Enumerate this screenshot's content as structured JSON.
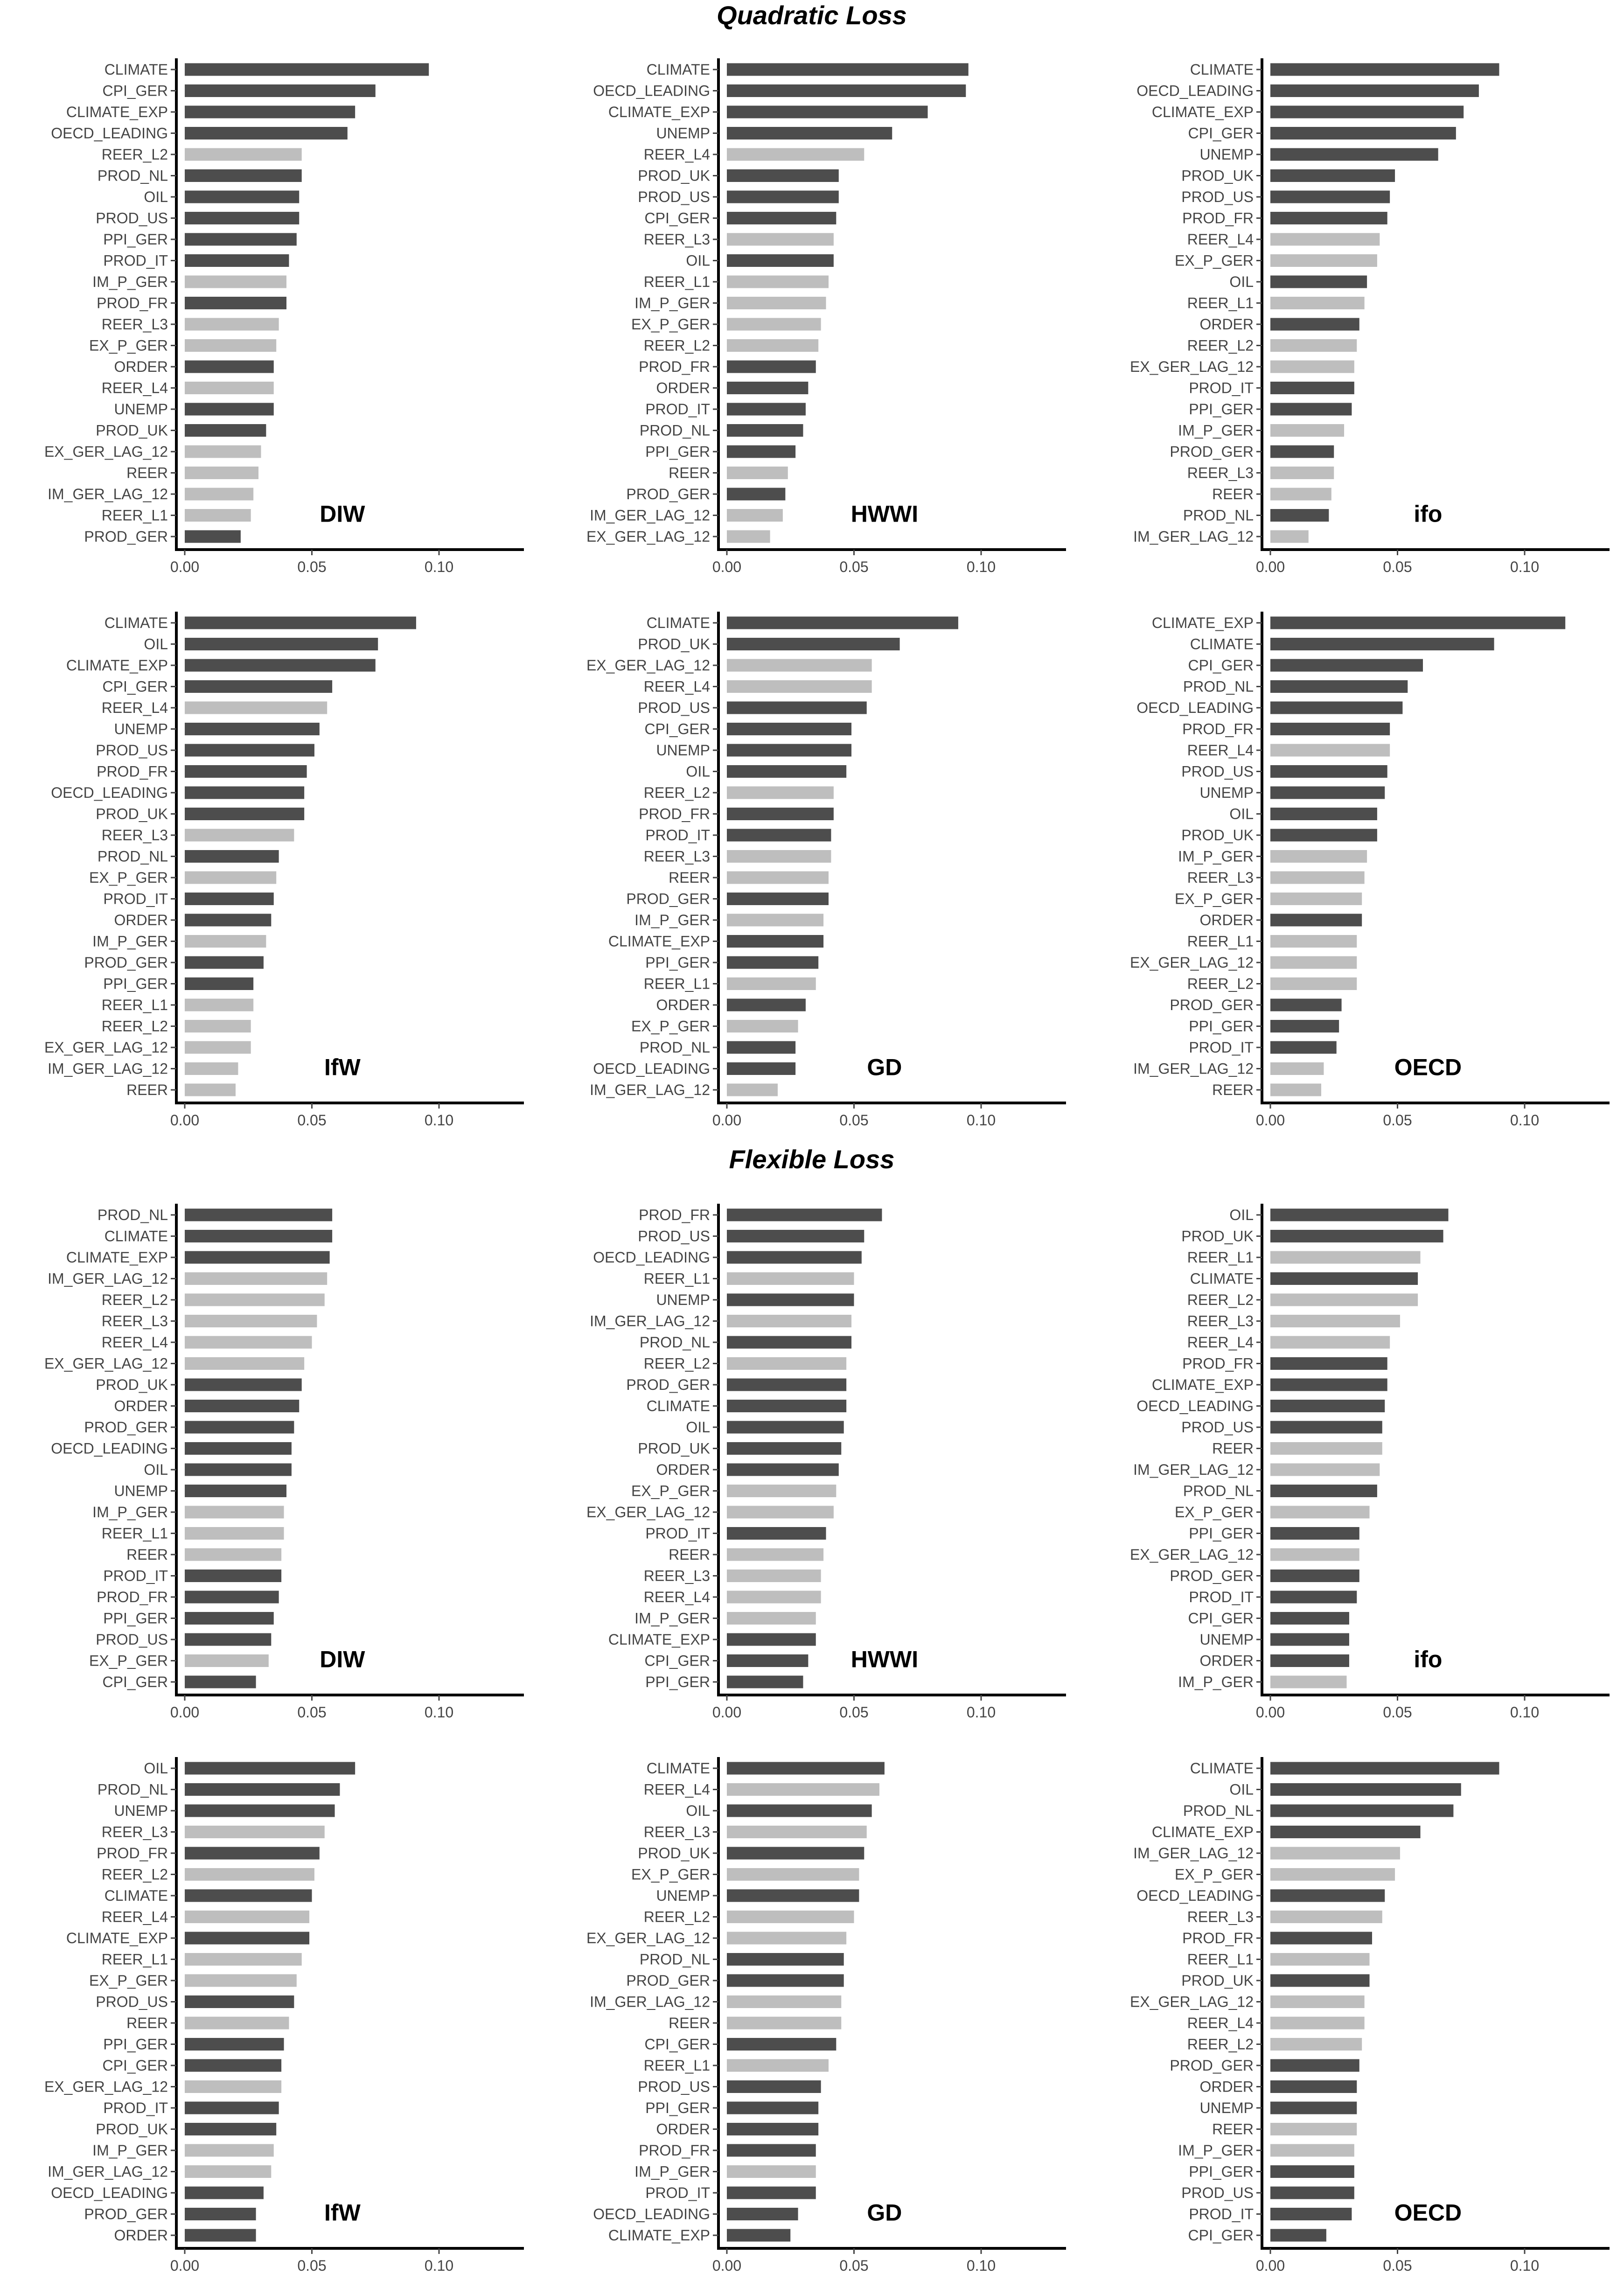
{
  "colors": {
    "dark": "#4d4d4d",
    "light": "#bebebe",
    "axis": "#000000",
    "text": "#444444"
  },
  "chart_data": [
    {
      "section_title": "Quadratic Loss",
      "type": "bar",
      "orientation": "horizontal",
      "xlim": [
        0,
        0.135
      ],
      "xticks": [
        "0.00",
        "0.05",
        "0.10"
      ],
      "panels": [
        {
          "label": "DIW",
          "categories": [
            "CLIMATE",
            "CPI_GER",
            "CLIMATE_EXP",
            "OECD_LEADING",
            "REER_L2",
            "PROD_NL",
            "OIL",
            "PROD_US",
            "PPI_GER",
            "PROD_IT",
            "IM_P_GER",
            "PROD_FR",
            "REER_L3",
            "EX_P_GER",
            "ORDER",
            "REER_L4",
            "UNEMP",
            "PROD_UK",
            "EX_GER_LAG_12",
            "REER",
            "IM_GER_LAG_12",
            "REER_L1",
            "PROD_GER"
          ],
          "values": [
            0.096,
            0.075,
            0.067,
            0.064,
            0.046,
            0.046,
            0.045,
            0.045,
            0.044,
            0.041,
            0.04,
            0.04,
            0.037,
            0.036,
            0.035,
            0.035,
            0.035,
            0.032,
            0.03,
            0.029,
            0.027,
            0.026,
            0.022
          ],
          "shade": [
            "dark",
            "dark",
            "dark",
            "dark",
            "light",
            "dark",
            "dark",
            "dark",
            "dark",
            "dark",
            "light",
            "dark",
            "light",
            "light",
            "dark",
            "light",
            "dark",
            "dark",
            "light",
            "light",
            "light",
            "light",
            "dark"
          ]
        },
        {
          "label": "HWWI",
          "categories": [
            "CLIMATE",
            "OECD_LEADING",
            "CLIMATE_EXP",
            "UNEMP",
            "REER_L4",
            "PROD_UK",
            "PROD_US",
            "CPI_GER",
            "REER_L3",
            "OIL",
            "REER_L1",
            "IM_P_GER",
            "EX_P_GER",
            "REER_L2",
            "PROD_FR",
            "ORDER",
            "PROD_IT",
            "PROD_NL",
            "PPI_GER",
            "REER",
            "PROD_GER",
            "IM_GER_LAG_12",
            "EX_GER_LAG_12"
          ],
          "values": [
            0.095,
            0.094,
            0.079,
            0.065,
            0.054,
            0.044,
            0.044,
            0.043,
            0.042,
            0.042,
            0.04,
            0.039,
            0.037,
            0.036,
            0.035,
            0.032,
            0.031,
            0.03,
            0.027,
            0.024,
            0.023,
            0.022,
            0.017
          ],
          "shade": [
            "dark",
            "dark",
            "dark",
            "dark",
            "light",
            "dark",
            "dark",
            "dark",
            "light",
            "dark",
            "light",
            "light",
            "light",
            "light",
            "dark",
            "dark",
            "dark",
            "dark",
            "dark",
            "light",
            "dark",
            "light",
            "light"
          ]
        },
        {
          "label": "ifo",
          "categories": [
            "CLIMATE",
            "OECD_LEADING",
            "CLIMATE_EXP",
            "CPI_GER",
            "UNEMP",
            "PROD_UK",
            "PROD_US",
            "PROD_FR",
            "REER_L4",
            "EX_P_GER",
            "OIL",
            "REER_L1",
            "ORDER",
            "REER_L2",
            "EX_GER_LAG_12",
            "PROD_IT",
            "PPI_GER",
            "IM_P_GER",
            "PROD_GER",
            "REER_L3",
            "REER",
            "PROD_NL",
            "IM_GER_LAG_12"
          ],
          "values": [
            0.09,
            0.082,
            0.076,
            0.073,
            0.066,
            0.049,
            0.047,
            0.046,
            0.043,
            0.042,
            0.038,
            0.037,
            0.035,
            0.034,
            0.033,
            0.033,
            0.032,
            0.029,
            0.025,
            0.025,
            0.024,
            0.023,
            0.015
          ],
          "shade": [
            "dark",
            "dark",
            "dark",
            "dark",
            "dark",
            "dark",
            "dark",
            "dark",
            "light",
            "light",
            "dark",
            "light",
            "dark",
            "light",
            "light",
            "dark",
            "dark",
            "light",
            "dark",
            "light",
            "light",
            "dark",
            "light"
          ]
        },
        {
          "label": "IfW",
          "categories": [
            "CLIMATE",
            "OIL",
            "CLIMATE_EXP",
            "CPI_GER",
            "REER_L4",
            "UNEMP",
            "PROD_US",
            "PROD_FR",
            "OECD_LEADING",
            "PROD_UK",
            "REER_L3",
            "PROD_NL",
            "EX_P_GER",
            "PROD_IT",
            "ORDER",
            "IM_P_GER",
            "PROD_GER",
            "PPI_GER",
            "REER_L1",
            "REER_L2",
            "EX_GER_LAG_12",
            "IM_GER_LAG_12",
            "REER"
          ],
          "values": [
            0.091,
            0.076,
            0.075,
            0.058,
            0.056,
            0.053,
            0.051,
            0.048,
            0.047,
            0.047,
            0.043,
            0.037,
            0.036,
            0.035,
            0.034,
            0.032,
            0.031,
            0.027,
            0.027,
            0.026,
            0.026,
            0.021,
            0.02
          ],
          "shade": [
            "dark",
            "dark",
            "dark",
            "dark",
            "light",
            "dark",
            "dark",
            "dark",
            "dark",
            "dark",
            "light",
            "dark",
            "light",
            "dark",
            "dark",
            "light",
            "dark",
            "dark",
            "light",
            "light",
            "light",
            "light",
            "light"
          ]
        },
        {
          "label": "GD",
          "categories": [
            "CLIMATE",
            "PROD_UK",
            "EX_GER_LAG_12",
            "REER_L4",
            "PROD_US",
            "CPI_GER",
            "UNEMP",
            "OIL",
            "REER_L2",
            "PROD_FR",
            "PROD_IT",
            "REER_L3",
            "REER",
            "PROD_GER",
            "IM_P_GER",
            "CLIMATE_EXP",
            "PPI_GER",
            "REER_L1",
            "ORDER",
            "EX_P_GER",
            "PROD_NL",
            "OECD_LEADING",
            "IM_GER_LAG_12"
          ],
          "values": [
            0.091,
            0.068,
            0.057,
            0.057,
            0.055,
            0.049,
            0.049,
            0.047,
            0.042,
            0.042,
            0.041,
            0.041,
            0.04,
            0.04,
            0.038,
            0.038,
            0.036,
            0.035,
            0.031,
            0.028,
            0.027,
            0.027,
            0.02
          ],
          "shade": [
            "dark",
            "dark",
            "light",
            "light",
            "dark",
            "dark",
            "dark",
            "dark",
            "light",
            "dark",
            "dark",
            "light",
            "light",
            "dark",
            "light",
            "dark",
            "dark",
            "light",
            "dark",
            "light",
            "dark",
            "dark",
            "light"
          ]
        },
        {
          "label": "OECD",
          "categories": [
            "CLIMATE_EXP",
            "CLIMATE",
            "CPI_GER",
            "PROD_NL",
            "OECD_LEADING",
            "PROD_FR",
            "REER_L4",
            "PROD_US",
            "UNEMP",
            "OIL",
            "PROD_UK",
            "IM_P_GER",
            "REER_L3",
            "EX_P_GER",
            "ORDER",
            "REER_L1",
            "EX_GER_LAG_12",
            "REER_L2",
            "PROD_GER",
            "PPI_GER",
            "PROD_IT",
            "IM_GER_LAG_12",
            "REER"
          ],
          "values": [
            0.116,
            0.088,
            0.06,
            0.054,
            0.052,
            0.047,
            0.047,
            0.046,
            0.045,
            0.042,
            0.042,
            0.038,
            0.037,
            0.036,
            0.036,
            0.034,
            0.034,
            0.034,
            0.028,
            0.027,
            0.026,
            0.021,
            0.02
          ],
          "shade": [
            "dark",
            "dark",
            "dark",
            "dark",
            "dark",
            "dark",
            "light",
            "dark",
            "dark",
            "dark",
            "dark",
            "light",
            "light",
            "light",
            "dark",
            "light",
            "light",
            "light",
            "dark",
            "dark",
            "dark",
            "light",
            "light"
          ]
        }
      ]
    },
    {
      "section_title": "Flexible Loss",
      "type": "bar",
      "orientation": "horizontal",
      "xlim": [
        0,
        0.135
      ],
      "xticks": [
        "0.00",
        "0.05",
        "0.10"
      ],
      "panels": [
        {
          "label": "DIW",
          "categories": [
            "PROD_NL",
            "CLIMATE",
            "CLIMATE_EXP",
            "IM_GER_LAG_12",
            "REER_L2",
            "REER_L3",
            "REER_L4",
            "EX_GER_LAG_12",
            "PROD_UK",
            "ORDER",
            "PROD_GER",
            "OECD_LEADING",
            "OIL",
            "UNEMP",
            "IM_P_GER",
            "REER_L1",
            "REER",
            "PROD_IT",
            "PROD_FR",
            "PPI_GER",
            "PROD_US",
            "EX_P_GER",
            "CPI_GER"
          ],
          "values": [
            0.058,
            0.058,
            0.057,
            0.056,
            0.055,
            0.052,
            0.05,
            0.047,
            0.046,
            0.045,
            0.043,
            0.042,
            0.042,
            0.04,
            0.039,
            0.039,
            0.038,
            0.038,
            0.037,
            0.035,
            0.034,
            0.033,
            0.028
          ],
          "shade": [
            "dark",
            "dark",
            "dark",
            "light",
            "light",
            "light",
            "light",
            "light",
            "dark",
            "dark",
            "dark",
            "dark",
            "dark",
            "dark",
            "light",
            "light",
            "light",
            "dark",
            "dark",
            "dark",
            "dark",
            "light",
            "dark"
          ]
        },
        {
          "label": "HWWI",
          "categories": [
            "PROD_FR",
            "PROD_US",
            "OECD_LEADING",
            "REER_L1",
            "UNEMP",
            "IM_GER_LAG_12",
            "PROD_NL",
            "REER_L2",
            "PROD_GER",
            "CLIMATE",
            "OIL",
            "PROD_UK",
            "ORDER",
            "EX_P_GER",
            "EX_GER_LAG_12",
            "PROD_IT",
            "REER",
            "REER_L3",
            "REER_L4",
            "IM_P_GER",
            "CLIMATE_EXP",
            "CPI_GER",
            "PPI_GER"
          ],
          "values": [
            0.061,
            0.054,
            0.053,
            0.05,
            0.05,
            0.049,
            0.049,
            0.047,
            0.047,
            0.047,
            0.046,
            0.045,
            0.044,
            0.043,
            0.042,
            0.039,
            0.038,
            0.037,
            0.037,
            0.035,
            0.035,
            0.032,
            0.03
          ],
          "shade": [
            "dark",
            "dark",
            "dark",
            "light",
            "dark",
            "light",
            "dark",
            "light",
            "dark",
            "dark",
            "dark",
            "dark",
            "dark",
            "light",
            "light",
            "dark",
            "light",
            "light",
            "light",
            "light",
            "dark",
            "dark",
            "dark"
          ]
        },
        {
          "label": "ifo",
          "categories": [
            "OIL",
            "PROD_UK",
            "REER_L1",
            "CLIMATE",
            "REER_L2",
            "REER_L3",
            "REER_L4",
            "PROD_FR",
            "CLIMATE_EXP",
            "OECD_LEADING",
            "PROD_US",
            "REER",
            "IM_GER_LAG_12",
            "PROD_NL",
            "EX_P_GER",
            "PPI_GER",
            "EX_GER_LAG_12",
            "PROD_GER",
            "PROD_IT",
            "CPI_GER",
            "UNEMP",
            "ORDER",
            "IM_P_GER"
          ],
          "values": [
            0.07,
            0.068,
            0.059,
            0.058,
            0.058,
            0.051,
            0.047,
            0.046,
            0.046,
            0.045,
            0.044,
            0.044,
            0.043,
            0.042,
            0.039,
            0.035,
            0.035,
            0.035,
            0.034,
            0.031,
            0.031,
            0.031,
            0.03
          ],
          "shade": [
            "dark",
            "dark",
            "light",
            "dark",
            "light",
            "light",
            "light",
            "dark",
            "dark",
            "dark",
            "dark",
            "light",
            "light",
            "dark",
            "light",
            "dark",
            "light",
            "dark",
            "dark",
            "dark",
            "dark",
            "dark",
            "light"
          ]
        },
        {
          "label": "IfW",
          "categories": [
            "OIL",
            "PROD_NL",
            "UNEMP",
            "REER_L3",
            "PROD_FR",
            "REER_L2",
            "CLIMATE",
            "REER_L4",
            "CLIMATE_EXP",
            "REER_L1",
            "EX_P_GER",
            "PROD_US",
            "REER",
            "PPI_GER",
            "CPI_GER",
            "EX_GER_LAG_12",
            "PROD_IT",
            "PROD_UK",
            "IM_P_GER",
            "IM_GER_LAG_12",
            "OECD_LEADING",
            "PROD_GER",
            "ORDER"
          ],
          "values": [
            0.067,
            0.061,
            0.059,
            0.055,
            0.053,
            0.051,
            0.05,
            0.049,
            0.049,
            0.046,
            0.044,
            0.043,
            0.041,
            0.039,
            0.038,
            0.038,
            0.037,
            0.036,
            0.035,
            0.034,
            0.031,
            0.028,
            0.028
          ],
          "shade": [
            "dark",
            "dark",
            "dark",
            "light",
            "dark",
            "light",
            "dark",
            "light",
            "dark",
            "light",
            "light",
            "dark",
            "light",
            "dark",
            "dark",
            "light",
            "dark",
            "dark",
            "light",
            "light",
            "dark",
            "dark",
            "dark"
          ]
        },
        {
          "label": "GD",
          "categories": [
            "CLIMATE",
            "REER_L4",
            "OIL",
            "REER_L3",
            "PROD_UK",
            "EX_P_GER",
            "UNEMP",
            "REER_L2",
            "EX_GER_LAG_12",
            "PROD_NL",
            "PROD_GER",
            "IM_GER_LAG_12",
            "REER",
            "CPI_GER",
            "REER_L1",
            "PROD_US",
            "PPI_GER",
            "ORDER",
            "PROD_FR",
            "IM_P_GER",
            "PROD_IT",
            "OECD_LEADING",
            "CLIMATE_EXP"
          ],
          "values": [
            0.062,
            0.06,
            0.057,
            0.055,
            0.054,
            0.052,
            0.052,
            0.05,
            0.047,
            0.046,
            0.046,
            0.045,
            0.045,
            0.043,
            0.04,
            0.037,
            0.036,
            0.036,
            0.035,
            0.035,
            0.035,
            0.028,
            0.025
          ],
          "shade": [
            "dark",
            "light",
            "dark",
            "light",
            "dark",
            "light",
            "dark",
            "light",
            "light",
            "dark",
            "dark",
            "light",
            "light",
            "dark",
            "light",
            "dark",
            "dark",
            "dark",
            "dark",
            "light",
            "dark",
            "dark",
            "dark"
          ]
        },
        {
          "label": "OECD",
          "categories": [
            "CLIMATE",
            "OIL",
            "PROD_NL",
            "CLIMATE_EXP",
            "IM_GER_LAG_12",
            "EX_P_GER",
            "OECD_LEADING",
            "REER_L3",
            "PROD_FR",
            "REER_L1",
            "PROD_UK",
            "EX_GER_LAG_12",
            "REER_L4",
            "REER_L2",
            "PROD_GER",
            "ORDER",
            "UNEMP",
            "REER",
            "IM_P_GER",
            "PPI_GER",
            "PROD_US",
            "PROD_IT",
            "CPI_GER"
          ],
          "values": [
            0.09,
            0.075,
            0.072,
            0.059,
            0.051,
            0.049,
            0.045,
            0.044,
            0.04,
            0.039,
            0.039,
            0.037,
            0.037,
            0.036,
            0.035,
            0.034,
            0.034,
            0.034,
            0.033,
            0.033,
            0.033,
            0.032,
            0.022
          ],
          "shade": [
            "dark",
            "dark",
            "dark",
            "dark",
            "light",
            "light",
            "dark",
            "light",
            "dark",
            "light",
            "dark",
            "light",
            "light",
            "light",
            "dark",
            "dark",
            "dark",
            "light",
            "light",
            "dark",
            "dark",
            "dark",
            "dark"
          ]
        }
      ]
    }
  ]
}
